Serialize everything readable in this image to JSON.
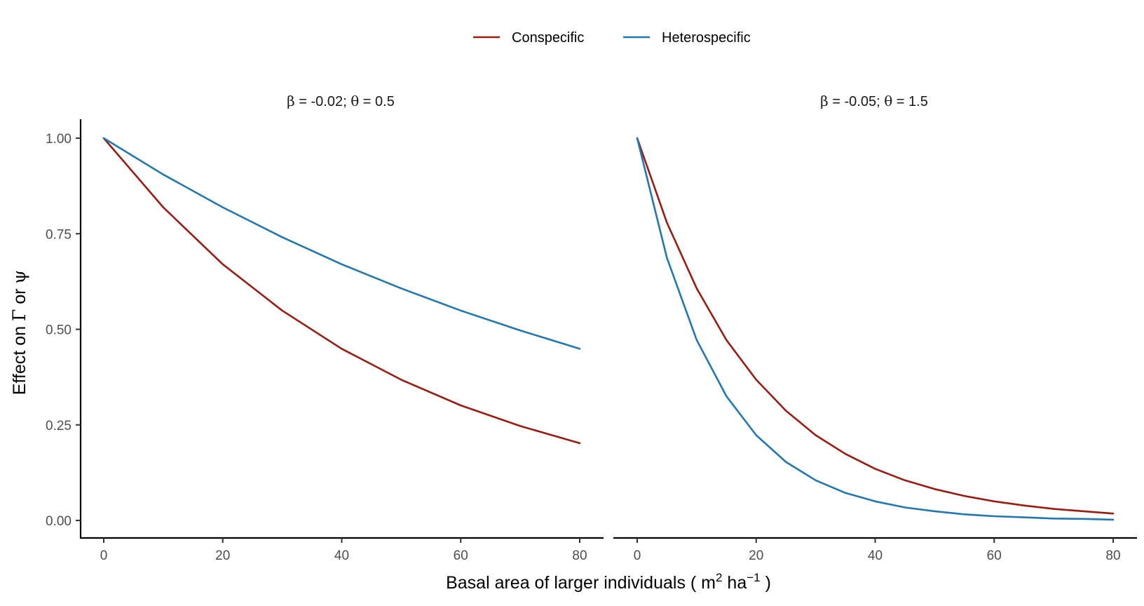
{
  "colors": {
    "conspecific": "#9e1a0f",
    "heterospecific": "#1f78b4",
    "axis": "#000000",
    "tick_label": "#4d4d4d"
  },
  "chart_data": {
    "type": "line",
    "legend": {
      "position": "top",
      "entries": [
        "Conspecific",
        "Heterospecific"
      ]
    },
    "xlabel": "Basal area of larger individuals ( m² ha⁻¹ )",
    "xlabel_parts": {
      "pre": "Basal area of larger individuals ( m",
      "sup1": "2",
      "mid": " ha",
      "sup2": "−1",
      "post": " )"
    },
    "ylabel": "Effect on Γ or ψ",
    "ylabel_parts": {
      "pre": "Effect on ",
      "sym1": "Γ",
      "mid": " or ",
      "sym2": "ψ"
    },
    "grid": false,
    "xlim": [
      0,
      80
    ],
    "ylim": [
      0,
      1
    ],
    "x_ticks": [
      0,
      20,
      40,
      60,
      80
    ],
    "x_tick_labels": [
      "0",
      "20",
      "40",
      "60",
      "80"
    ],
    "y_ticks": [
      0,
      0.25,
      0.5,
      0.75,
      1
    ],
    "y_tick_labels": [
      "0.00",
      "0.25",
      "0.50",
      "0.75",
      "1.00"
    ],
    "panels": [
      {
        "title": "β = -0.02; θ = 0.5",
        "title_parts": {
          "s1": "β",
          "t1": " = -0.02; ",
          "s2": "θ",
          "t2": " = 0.5"
        },
        "x": [
          0,
          10,
          20,
          30,
          40,
          50,
          60,
          70,
          80
        ],
        "series": [
          {
            "name": "Conspecific",
            "values": [
              1.0,
              0.819,
              0.67,
              0.549,
              0.449,
              0.368,
              0.301,
              0.247,
              0.202
            ]
          },
          {
            "name": "Heterospecific",
            "values": [
              1.0,
              0.905,
              0.819,
              0.741,
              0.67,
              0.607,
              0.549,
              0.497,
              0.449
            ]
          }
        ]
      },
      {
        "title": "β = -0.05; θ = 1.5",
        "title_parts": {
          "s1": "β",
          "t1": " = -0.05; ",
          "s2": "θ",
          "t2": " = 1.5"
        },
        "x": [
          0,
          5,
          10,
          15,
          20,
          25,
          30,
          35,
          40,
          45,
          50,
          55,
          60,
          65,
          70,
          75,
          80
        ],
        "series": [
          {
            "name": "Conspecific",
            "values": [
              1.0,
              0.779,
              0.607,
              0.472,
              0.368,
              0.287,
              0.223,
              0.174,
              0.135,
              0.105,
              0.082,
              0.064,
              0.05,
              0.039,
              0.03,
              0.024,
              0.018
            ]
          },
          {
            "name": "Heterospecific",
            "values": [
              1.0,
              0.687,
              0.472,
              0.325,
              0.223,
              0.153,
              0.105,
              0.072,
              0.05,
              0.034,
              0.024,
              0.016,
              0.011,
              0.008,
              0.005,
              0.004,
              0.002
            ]
          }
        ]
      }
    ]
  }
}
